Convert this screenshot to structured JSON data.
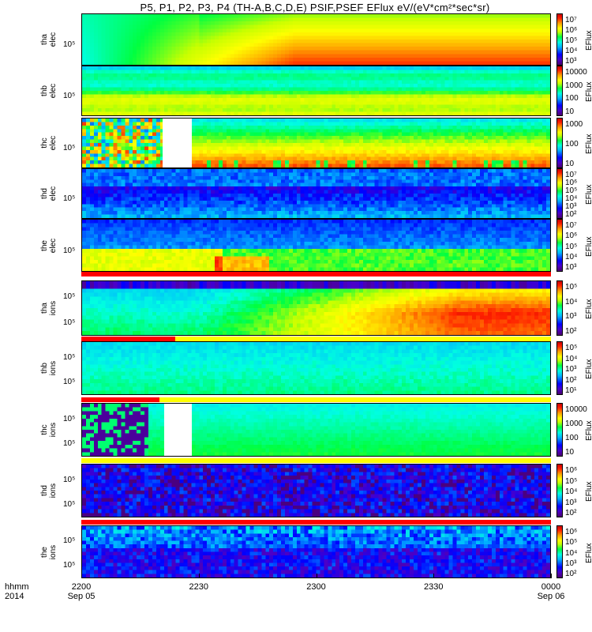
{
  "title": "P5, P1, P2, P3, P4 (TH-A,B,C,D,E) PSIF,PSEF EFlux eV/(eV*cm²*sec*sr)",
  "chart_data": {
    "type": "heatmap",
    "title": "P5, P1, P2, P3, P4 (TH-A,B,C,D,E) PSIF,PSEF EFlux eV/(eV*cm²*sec*sr)",
    "xaxis": {
      "label": [
        "hhmm",
        "2014"
      ],
      "ticks": [
        {
          "value": 0,
          "label": "2200",
          "sub": "Sep 05"
        },
        {
          "value": 30,
          "label": "2230",
          "sub": ""
        },
        {
          "value": 60,
          "label": "2300",
          "sub": ""
        },
        {
          "value": 90,
          "label": "2330",
          "sub": ""
        },
        {
          "value": 120,
          "label": "0000",
          "sub": "Sep 06"
        }
      ],
      "range_minutes": [
        0,
        120
      ]
    },
    "panels": [
      {
        "id": "tha-elec",
        "ylabel": [
          "tha",
          "elec"
        ],
        "yticks": [
          "10⁵"
        ],
        "cbar_title": "EFlux",
        "cbar_ticks": [
          "10⁷",
          "10⁶",
          "10⁵",
          "10⁴",
          "10³"
        ],
        "pattern": "tha_elec",
        "gap": null
      },
      {
        "id": "thb-elec",
        "ylabel": [
          "thb",
          "elec"
        ],
        "yticks": [
          "10⁵"
        ],
        "cbar_title": "EFlux",
        "cbar_ticks": [
          "10000",
          "1000",
          "100",
          "10"
        ],
        "pattern": "thb_elec",
        "gap": null
      },
      {
        "id": "thc-elec",
        "ylabel": [
          "thc",
          "elec"
        ],
        "yticks": [
          "10⁵"
        ],
        "cbar_title": "EFlux",
        "cbar_ticks": [
          "1000",
          "100",
          "10"
        ],
        "pattern": "thc_elec",
        "gap": [
          20.5,
          28.0
        ]
      },
      {
        "id": "thd-elec",
        "ylabel": [
          "thd",
          "elec"
        ],
        "yticks": [
          "10⁵"
        ],
        "cbar_title": "EFlux",
        "cbar_ticks": [
          "10⁷",
          "10⁶",
          "10⁵",
          "10⁴",
          "10³",
          "10²"
        ],
        "pattern": "thd_elec",
        "gap": null
      },
      {
        "id": "the-elec",
        "ylabel": [
          "the",
          "elec"
        ],
        "yticks": [
          "10⁵"
        ],
        "cbar_title": "EFlux",
        "cbar_ticks": [
          "10⁷",
          "10⁶",
          "10⁵",
          "10⁴",
          "10³"
        ],
        "pattern": "the_elec",
        "gap": null
      },
      {
        "id": "tha-ions",
        "ylabel": [
          "tha",
          "ions"
        ],
        "yticks": [
          "10⁵",
          "10⁵"
        ],
        "cbar_title": "EFlux",
        "cbar_ticks": [
          "10⁵",
          "10⁴",
          "10³",
          "10²"
        ],
        "pattern": "tha_ions",
        "gap": null
      },
      {
        "id": "thb-ions",
        "ylabel": [
          "thb",
          "ions"
        ],
        "yticks": [
          "10⁵",
          "10⁵"
        ],
        "cbar_title": "EFlux",
        "cbar_ticks": [
          "10⁵",
          "10⁴",
          "10³",
          "10²",
          "10¹"
        ],
        "pattern": "thb_ions",
        "gap": null
      },
      {
        "id": "thc-ions",
        "ylabel": [
          "thc",
          "ions"
        ],
        "yticks": [
          "10⁵",
          "10⁵"
        ],
        "cbar_title": "EFlux",
        "cbar_ticks": [
          "10000",
          "1000",
          "100",
          "10"
        ],
        "pattern": "thc_ions",
        "gap": [
          21.0,
          28.0
        ]
      },
      {
        "id": "thd-ions",
        "ylabel": [
          "thd",
          "ions"
        ],
        "yticks": [
          "10⁵",
          "10⁵"
        ],
        "cbar_title": "EFlux",
        "cbar_ticks": [
          "10⁶",
          "10⁵",
          "10⁴",
          "10³",
          "10²"
        ],
        "pattern": "thd_ions",
        "gap": null
      },
      {
        "id": "the-ions",
        "ylabel": [
          "the",
          "ions"
        ],
        "yticks": [
          "10⁵",
          "10⁵"
        ],
        "cbar_title": "EFlux",
        "cbar_ticks": [
          "10⁶",
          "10⁵",
          "10⁴",
          "10³",
          "10²"
        ],
        "pattern": "the_ions",
        "gap": null
      }
    ],
    "mode_strips": [
      {
        "after": "the-elec",
        "segments": [
          {
            "from": 0,
            "to": 120,
            "color": "#ff0000"
          }
        ]
      },
      {
        "after": "tha-ions",
        "segments": [
          {
            "from": 0,
            "to": 24,
            "color": "#ff0000"
          },
          {
            "from": 24,
            "to": 120,
            "color": "#ffff00"
          }
        ]
      },
      {
        "after": "thb-ions",
        "segments": [
          {
            "from": 0,
            "to": 20,
            "color": "#ff0000"
          },
          {
            "from": 20,
            "to": 120,
            "color": "#ffff00"
          }
        ]
      },
      {
        "after": "thc-ions",
        "segments": [
          {
            "from": 0,
            "to": 120,
            "color": "#ffff00"
          }
        ]
      },
      {
        "after": "thd-ions",
        "segments": [
          {
            "from": 0,
            "to": 120,
            "color": "#ff0000"
          }
        ]
      }
    ]
  }
}
